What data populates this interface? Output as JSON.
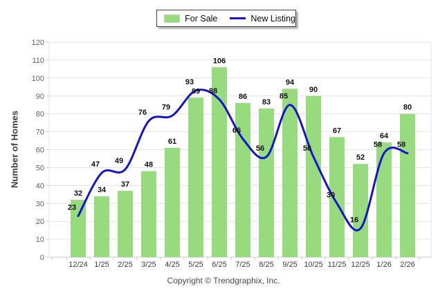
{
  "legend": {
    "for_sale_label": "For Sale",
    "new_listing_label": "New Listing"
  },
  "footer": {
    "copyright": "Copyright © Trendgraphix, Inc."
  },
  "colors": {
    "bar_green": "#97db7e",
    "line_blue": "#1414cc",
    "grid": "#e4e4e4",
    "axis": "#c9c9c9",
    "data_label": "#0f0f0f"
  },
  "chart_data": {
    "type": "bar+line",
    "categories": [
      "12/24",
      "1/25",
      "2/25",
      "3/25",
      "4/25",
      "5/25",
      "6/25",
      "7/25",
      "8/25",
      "9/25",
      "10/25",
      "11/25",
      "12/25",
      "1/26",
      "2/26"
    ],
    "series": [
      {
        "name": "For Sale",
        "type": "bar",
        "color": "#97db7e",
        "values": [
          32,
          34,
          37,
          48,
          61,
          89,
          106,
          86,
          83,
          94,
          90,
          67,
          52,
          64,
          80
        ]
      },
      {
        "name": "New Listing",
        "type": "line",
        "color": "#1414cc",
        "values": [
          23,
          47,
          49,
          76,
          79,
          93,
          88,
          66,
          56,
          85,
          56,
          30,
          16,
          58,
          58
        ]
      }
    ],
    "title": "",
    "xlabel": "",
    "ylabel": "Number of Homes",
    "ylim": [
      0,
      120
    ],
    "ytick_step": 10,
    "grid": true,
    "legend_position": "top-center",
    "value_labels": true
  }
}
